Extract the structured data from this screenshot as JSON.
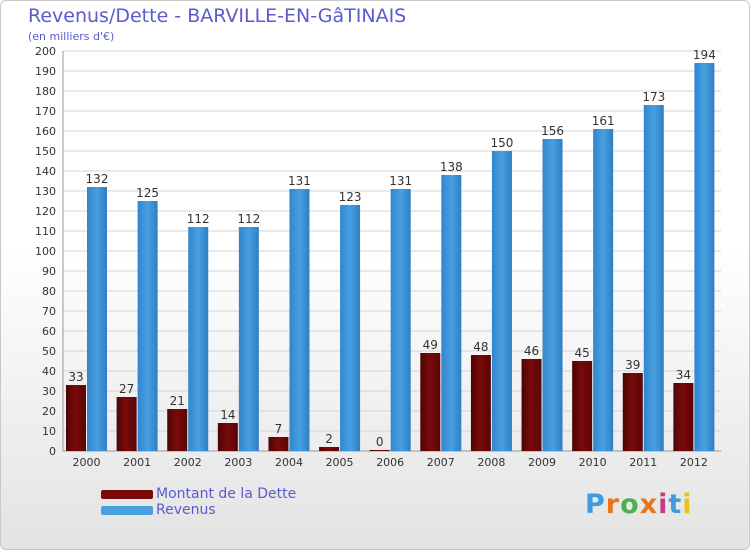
{
  "header": {
    "title": "Revenus/Dette - BARVILLE-EN-GâTINAIS",
    "subtitle": "(en milliers d'€)"
  },
  "colors": {
    "debt": "#7a0a0a",
    "revenue": "#4a9fe0",
    "text": "#5a5ad2"
  },
  "legend": {
    "items": [
      {
        "label": "Montant de la Dette",
        "color": "#7a0a0a"
      },
      {
        "label": "Revenus",
        "color": "#4a9fe0"
      }
    ]
  },
  "logo": {
    "text": "Proxiti"
  },
  "chart_data": {
    "type": "bar",
    "title": "Revenus/Dette - BARVILLE-EN-GâTINAIS",
    "subtitle": "(en milliers d'€)",
    "categories": [
      "2000",
      "2001",
      "2002",
      "2003",
      "2004",
      "2005",
      "2006",
      "2007",
      "2008",
      "2009",
      "2010",
      "2011",
      "2012"
    ],
    "series": [
      {
        "name": "Montant de la Dette",
        "values": [
          33,
          27,
          21,
          14,
          7,
          2,
          0,
          49,
          48,
          46,
          45,
          39,
          34
        ]
      },
      {
        "name": "Revenus",
        "values": [
          132,
          125,
          112,
          112,
          131,
          123,
          131,
          138,
          150,
          156,
          161,
          173,
          194
        ]
      }
    ],
    "ylim": [
      0,
      200
    ],
    "ytick_step": 10,
    "grid": true,
    "legend_position": "bottom-left"
  }
}
